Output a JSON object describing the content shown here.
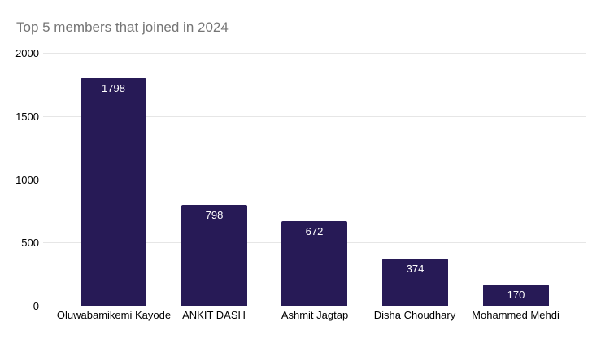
{
  "chart_data": {
    "type": "bar",
    "title": "Top 5 members that joined in 2024",
    "categories": [
      "Oluwabamikemi Kayode",
      "ANKIT DASH",
      "Ashmit Jagtap",
      "Disha Choudhary",
      "Mohammed Mehdi"
    ],
    "values": [
      1798,
      798,
      672,
      374,
      170
    ],
    "xlabel": "",
    "ylabel": "",
    "ylim": [
      0,
      2000
    ],
    "yticks": [
      0,
      500,
      1000,
      1500,
      2000
    ],
    "grid": true,
    "legend": "none",
    "data_labels_position": "inside-top",
    "colors": {
      "bar": "#271a56",
      "title": "#757575",
      "gridline": "#e6e6e6",
      "axis_line": "#333333",
      "tick_label": "#000000",
      "category_label": "#000000",
      "data_label": "#ffffff",
      "background": "#ffffff"
    }
  }
}
